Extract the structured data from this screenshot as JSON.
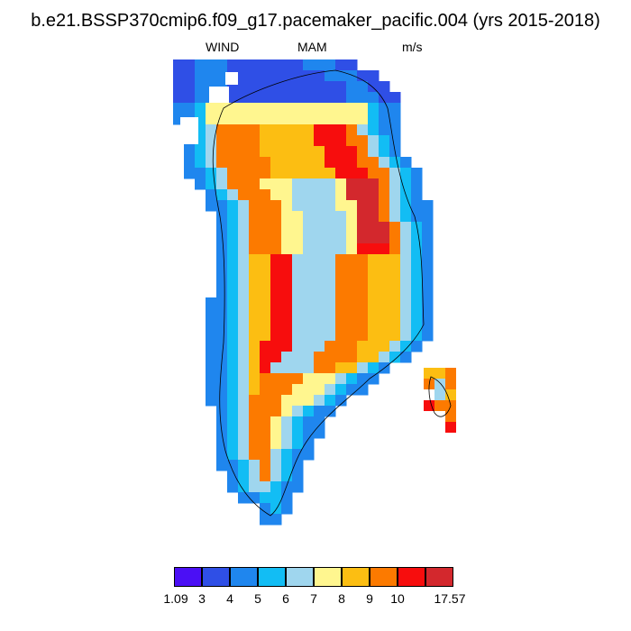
{
  "title": "b.e21.BSSP370cmip6.f09_g17.pacemaker_pacific.004 (yrs 2015-2018)",
  "left_string": "WIND",
  "center_string": "MAM",
  "right_string": "m/s",
  "colorbar": {
    "colors": [
      "#4b0ff5",
      "#2f4fe6",
      "#1f86ee",
      "#12bdf4",
      "#9fd6ee",
      "#fff68f",
      "#fcbe12",
      "#fc7a00",
      "#f70d0d",
      "#d3282d"
    ],
    "labels": [
      "1.09",
      "3",
      "4",
      "5",
      "6",
      "7",
      "8",
      "9",
      "10",
      "17.57"
    ]
  },
  "legend_fill": {
    "bin_1": "#4b0ff5"
  }
}
